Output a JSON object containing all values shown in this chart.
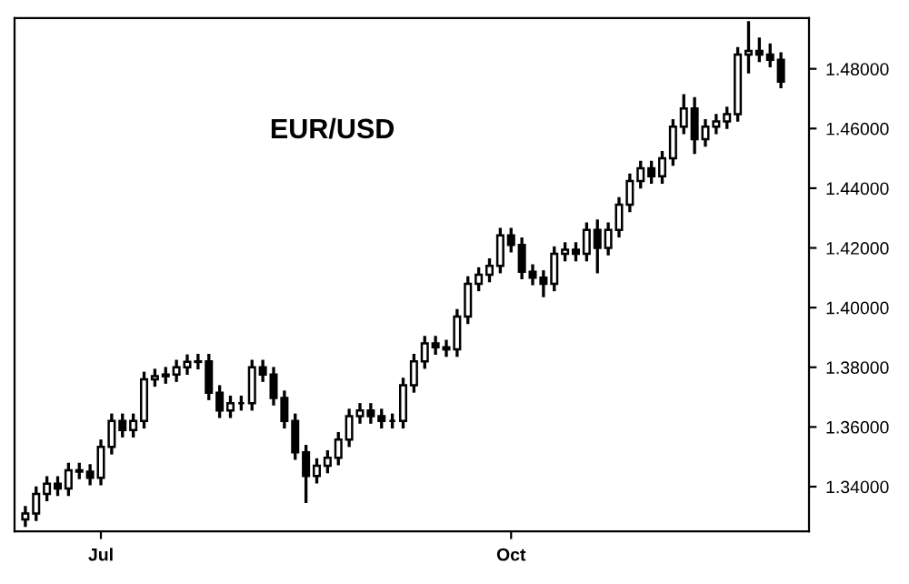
{
  "chart_data": {
    "type": "candlestick",
    "title": "EUR/USD",
    "categories": [
      null,
      null,
      null,
      null,
      null,
      null,
      null,
      "Jul",
      null,
      null,
      null,
      null,
      null,
      null,
      null,
      null,
      null,
      null,
      null,
      null,
      null,
      null,
      null,
      null,
      null,
      null,
      null,
      null,
      null,
      null,
      null,
      null,
      null,
      null,
      null,
      null,
      null,
      null,
      null,
      null,
      null,
      null,
      null,
      null,
      null,
      "Oct",
      null,
      null,
      null,
      null,
      null,
      null,
      null,
      null,
      null,
      null,
      null,
      null,
      null,
      null,
      null,
      null,
      null,
      null,
      null,
      null,
      null,
      null,
      null,
      null,
      null
    ],
    "ohlc": [
      [
        1.329,
        1.333,
        1.327,
        1.331
      ],
      [
        1.331,
        1.3396,
        1.329,
        1.3376
      ],
      [
        1.3376,
        1.343,
        1.3356,
        1.341
      ],
      [
        1.341,
        1.343,
        1.3374,
        1.3394
      ],
      [
        1.3394,
        1.3475,
        1.3374,
        1.3455
      ],
      [
        1.3455,
        1.3475,
        1.343,
        1.345
      ],
      [
        1.345,
        1.347,
        1.341,
        1.343
      ],
      [
        1.343,
        1.3553,
        1.341,
        1.3533
      ],
      [
        1.3533,
        1.364,
        1.3513,
        1.362
      ],
      [
        1.362,
        1.364,
        1.357,
        1.359
      ],
      [
        1.359,
        1.364,
        1.357,
        1.362
      ],
      [
        1.362,
        1.378,
        1.36,
        1.376
      ],
      [
        1.376,
        1.379,
        1.374,
        1.377
      ],
      [
        1.377,
        1.3796,
        1.375,
        1.3776
      ],
      [
        1.3776,
        1.382,
        1.3756,
        1.38
      ],
      [
        1.38,
        1.3838,
        1.378,
        1.3818
      ],
      [
        1.3818,
        1.384,
        1.3798,
        1.382
      ],
      [
        1.382,
        1.384,
        1.3695,
        1.3715
      ],
      [
        1.3715,
        1.3735,
        1.3635,
        1.3655
      ],
      [
        1.3655,
        1.37,
        1.3635,
        1.368
      ],
      [
        1.368,
        1.37,
        1.366,
        1.368
      ],
      [
        1.368,
        1.382,
        1.366,
        1.38
      ],
      [
        1.38,
        1.382,
        1.3756,
        1.3776
      ],
      [
        1.3776,
        1.3796,
        1.3677,
        1.3697
      ],
      [
        1.3697,
        1.3717,
        1.36,
        1.362
      ],
      [
        1.362,
        1.364,
        1.3495,
        1.3515
      ],
      [
        1.3515,
        1.3535,
        1.335,
        1.3436
      ],
      [
        1.3436,
        1.349,
        1.3416,
        1.347
      ],
      [
        1.347,
        1.3517,
        1.345,
        1.3497
      ],
      [
        1.3497,
        1.3578,
        1.3477,
        1.3558
      ],
      [
        1.3558,
        1.3656,
        1.3538,
        1.3636
      ],
      [
        1.3636,
        1.3675,
        1.3616,
        1.3655
      ],
      [
        1.3655,
        1.3675,
        1.3616,
        1.3636
      ],
      [
        1.3636,
        1.3656,
        1.36,
        1.362
      ],
      [
        1.362,
        1.364,
        1.36,
        1.362
      ],
      [
        1.362,
        1.376,
        1.36,
        1.374
      ],
      [
        1.374,
        1.384,
        1.372,
        1.382
      ],
      [
        1.382,
        1.39,
        1.38,
        1.388
      ],
      [
        1.388,
        1.39,
        1.3847,
        1.3867
      ],
      [
        1.3867,
        1.3887,
        1.384,
        1.386
      ],
      [
        1.386,
        1.399,
        1.384,
        1.397
      ],
      [
        1.397,
        1.41,
        1.395,
        1.408
      ],
      [
        1.408,
        1.413,
        1.406,
        1.411
      ],
      [
        1.411,
        1.416,
        1.409,
        1.414
      ],
      [
        1.414,
        1.4262,
        1.412,
        1.4242
      ],
      [
        1.4242,
        1.4262,
        1.419,
        1.421
      ],
      [
        1.421,
        1.423,
        1.41,
        1.412
      ],
      [
        1.412,
        1.414,
        1.408,
        1.41
      ],
      [
        1.41,
        1.412,
        1.404,
        1.408
      ],
      [
        1.408,
        1.42,
        1.406,
        1.418
      ],
      [
        1.418,
        1.4214,
        1.416,
        1.4194
      ],
      [
        1.4194,
        1.4214,
        1.416,
        1.418
      ],
      [
        1.418,
        1.428,
        1.416,
        1.426
      ],
      [
        1.426,
        1.429,
        1.412,
        1.42
      ],
      [
        1.42,
        1.428,
        1.418,
        1.426
      ],
      [
        1.426,
        1.4365,
        1.424,
        1.4345
      ],
      [
        1.4345,
        1.4444,
        1.4325,
        1.4424
      ],
      [
        1.4424,
        1.4487,
        1.4404,
        1.4467
      ],
      [
        1.4467,
        1.4487,
        1.442,
        1.444
      ],
      [
        1.444,
        1.452,
        1.442,
        1.45
      ],
      [
        1.45,
        1.4626,
        1.448,
        1.4606
      ],
      [
        1.4606,
        1.471,
        1.4586,
        1.4667
      ],
      [
        1.4667,
        1.47,
        1.452,
        1.4564
      ],
      [
        1.4564,
        1.4626,
        1.4544,
        1.4606
      ],
      [
        1.4606,
        1.4644,
        1.4586,
        1.4624
      ],
      [
        1.4624,
        1.4668,
        1.4604,
        1.4648
      ],
      [
        1.4648,
        1.4868,
        1.4628,
        1.4848
      ],
      [
        1.4848,
        1.4955,
        1.479,
        1.486
      ],
      [
        1.486,
        1.49,
        1.4828,
        1.4848
      ],
      [
        1.4848,
        1.488,
        1.481,
        1.483
      ],
      [
        1.483,
        1.485,
        1.474,
        1.4757
      ]
    ],
    "color": "#000000",
    "ylim": [
      1.325,
      1.497
    ],
    "yticks": [
      {
        "value": 1.34,
        "label": "1.34000"
      },
      {
        "value": 1.36,
        "label": "1.36000"
      },
      {
        "value": 1.38,
        "label": "1.38000"
      },
      {
        "value": 1.4,
        "label": "1.40000"
      },
      {
        "value": 1.42,
        "label": "1.42000"
      },
      {
        "value": 1.44,
        "label": "1.44000"
      },
      {
        "value": 1.46,
        "label": "1.46000"
      },
      {
        "value": 1.48,
        "label": "1.48000"
      }
    ]
  }
}
